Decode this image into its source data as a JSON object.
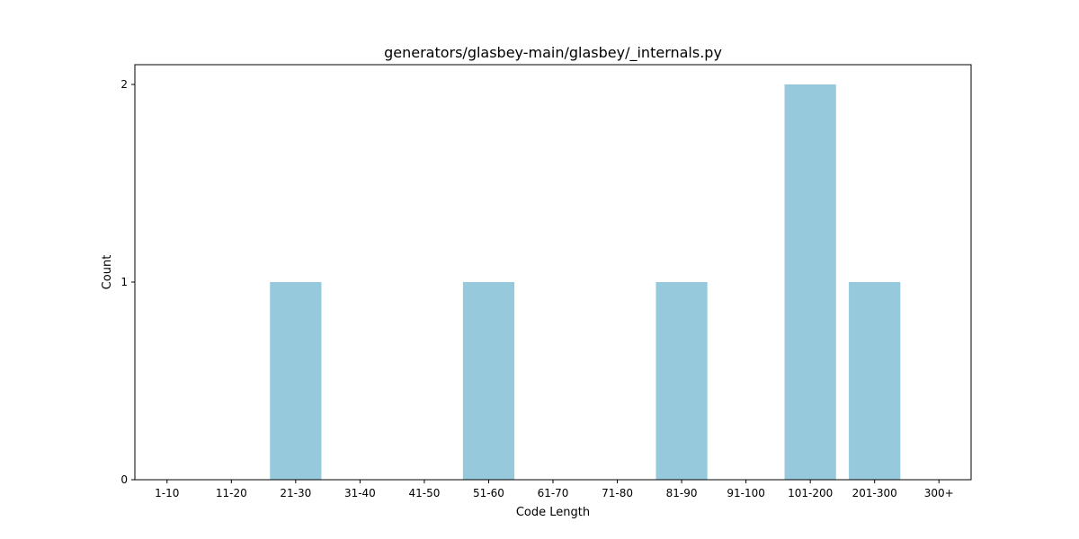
{
  "chart_data": {
    "type": "bar",
    "title": "generators/glasbey-main/glasbey/_internals.py",
    "xlabel": "Code Length",
    "ylabel": "Count",
    "categories": [
      "1-10",
      "11-20",
      "21-30",
      "31-40",
      "41-50",
      "51-60",
      "61-70",
      "71-80",
      "81-90",
      "91-100",
      "101-200",
      "201-300",
      "300+"
    ],
    "values": [
      0,
      0,
      1,
      0,
      0,
      1,
      0,
      0,
      1,
      0,
      2,
      1,
      0
    ],
    "ylim": [
      0,
      2.1
    ],
    "yticks": [
      0,
      1,
      2
    ],
    "grid": false,
    "legend": "none",
    "bar_color": "#96c9dc"
  }
}
